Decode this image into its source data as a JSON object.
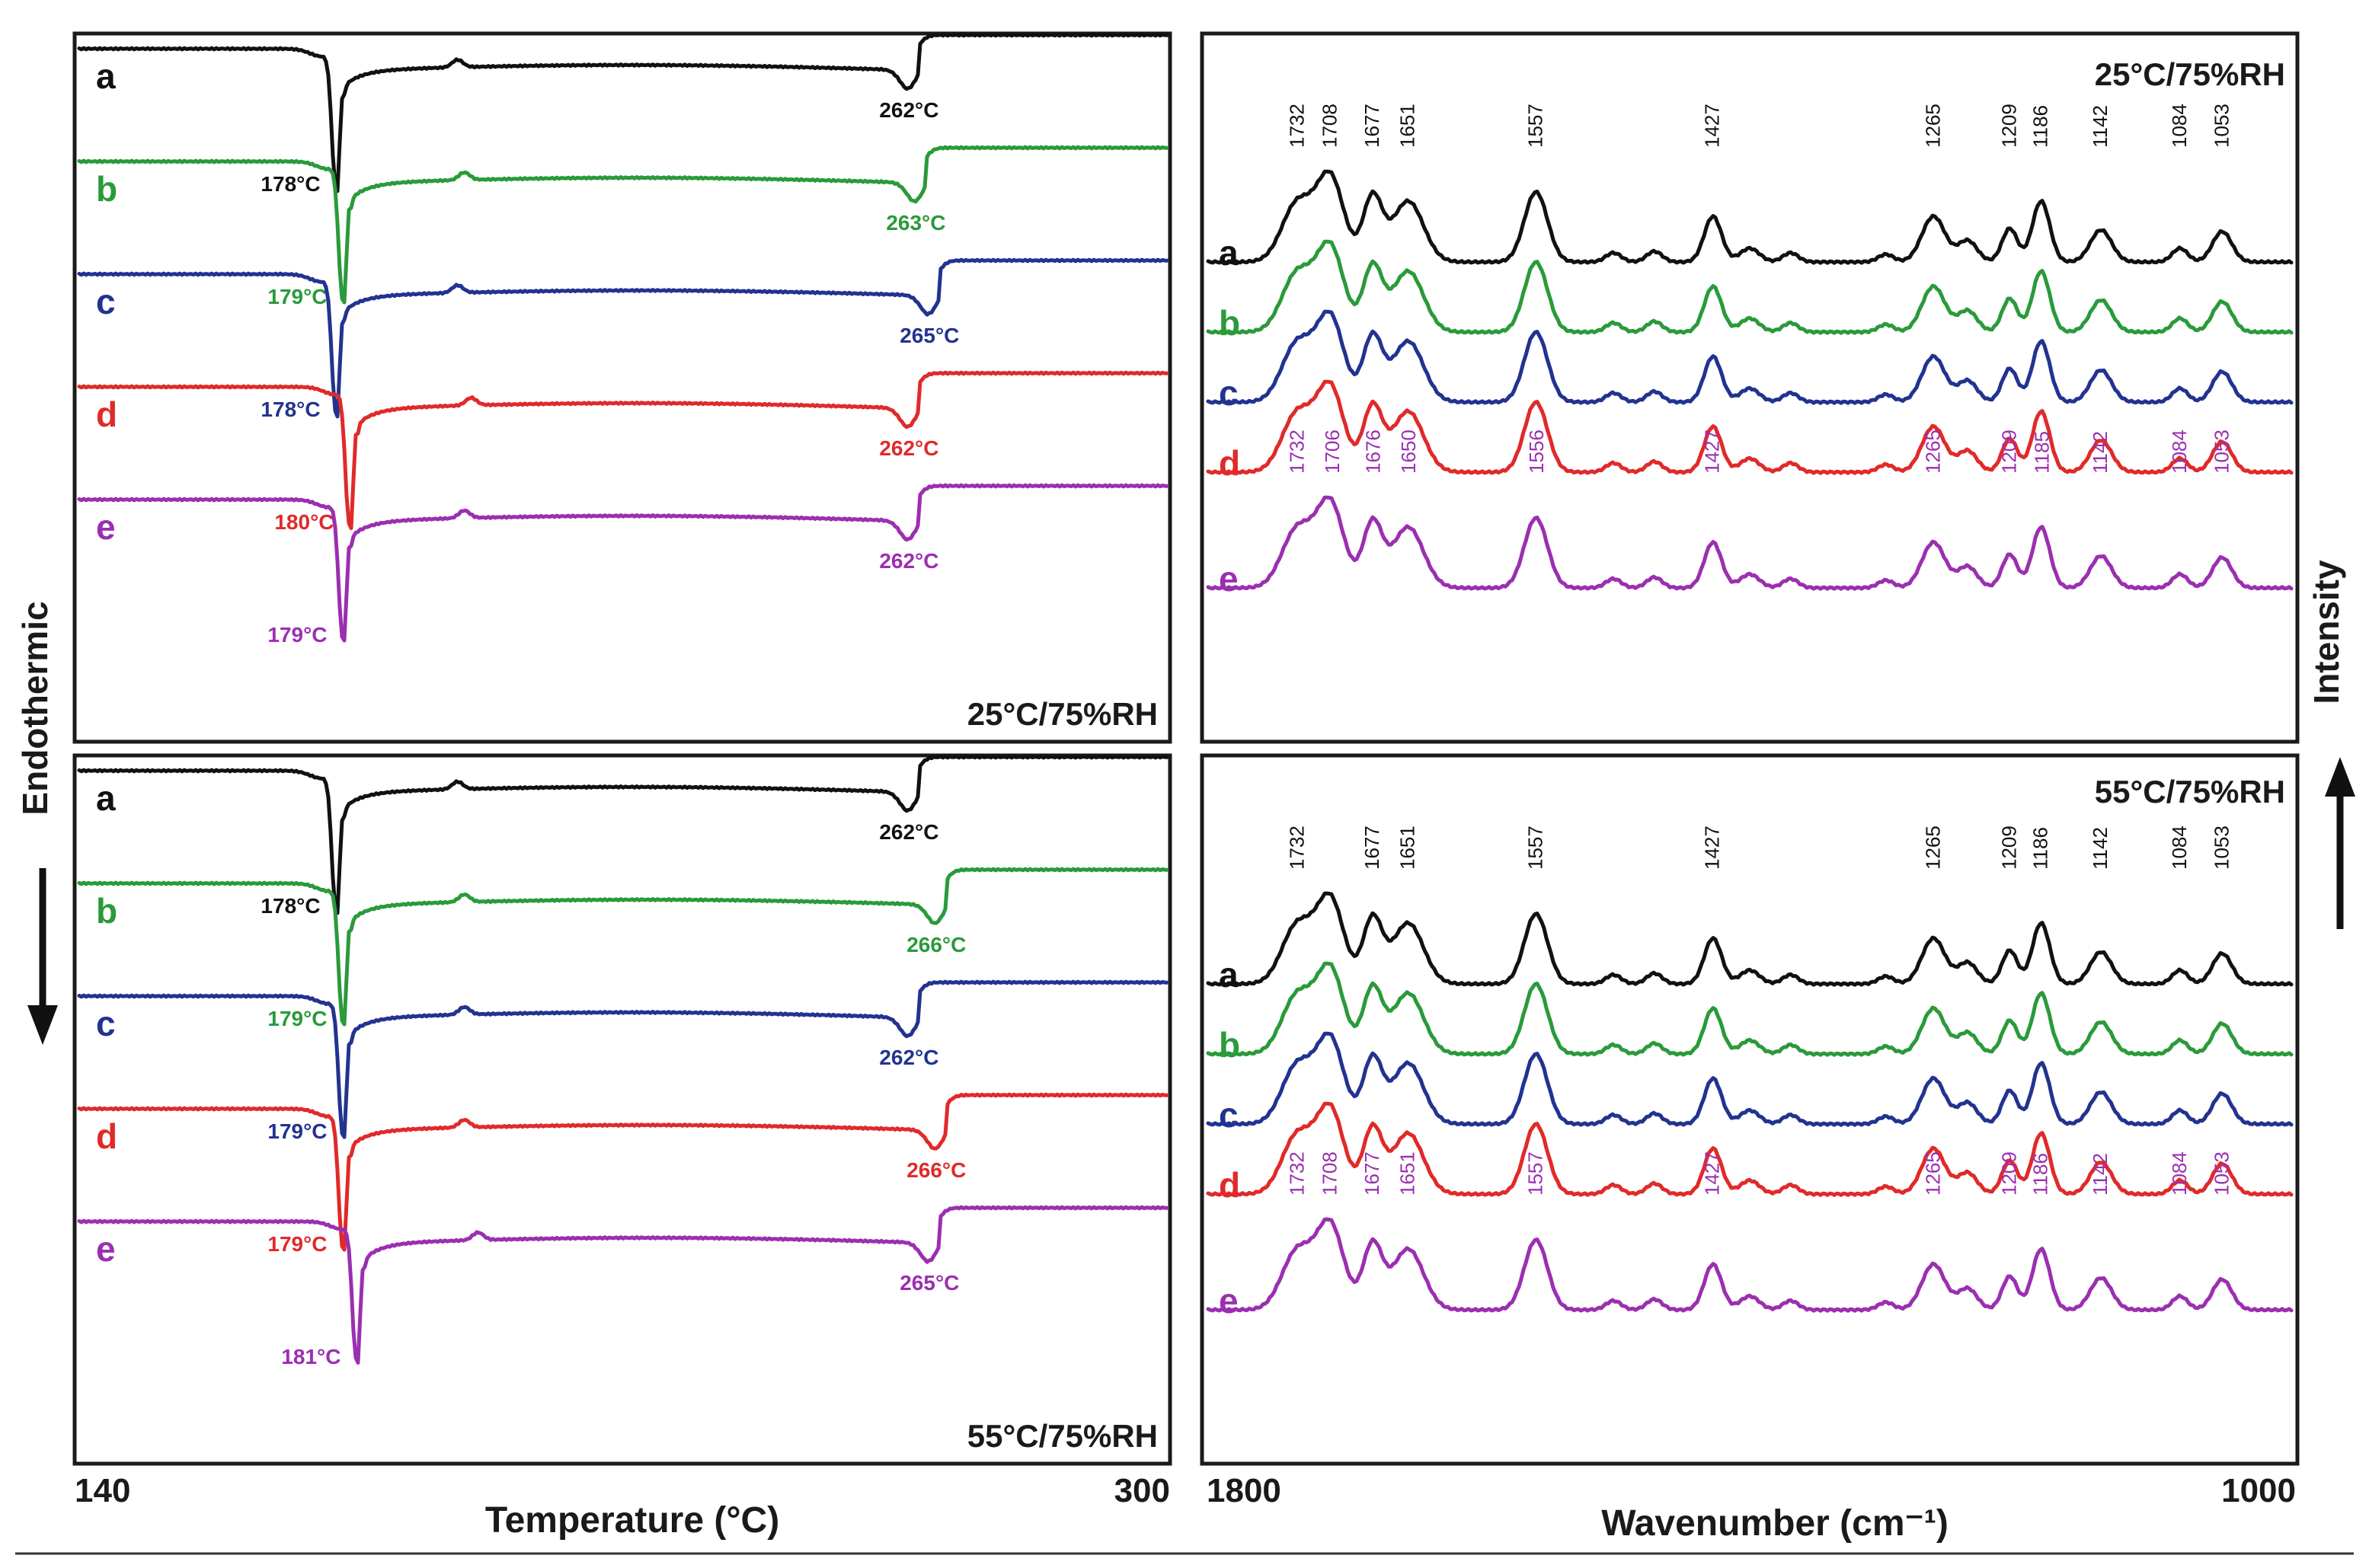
{
  "colors": {
    "a": "#111111",
    "b": "#2a9a3a",
    "c": "#22338f",
    "d": "#e02a2a",
    "e": "#9b2fb0"
  },
  "chart_data": [
    {
      "type": "line",
      "panel": "dsc-top",
      "title": "25°C/75%RH",
      "xlabel": "Temperature (°C)",
      "ylabel": "Endothermic",
      "xlim": [
        140,
        300
      ],
      "x_ticks": [
        "140",
        "300"
      ],
      "series": [
        {
          "name": "a",
          "peak1": 178,
          "peak1_label": "178°C",
          "peak2": 262,
          "peak2_label": "262°C"
        },
        {
          "name": "b",
          "peak1": 179,
          "peak1_label": "179°C",
          "peak2": 263,
          "peak2_label": "263°C"
        },
        {
          "name": "c",
          "peak1": 178,
          "peak1_label": "178°C",
          "peak2": 265,
          "peak2_label": "265°C"
        },
        {
          "name": "d",
          "peak1": 180,
          "peak1_label": "180°C",
          "peak2": 262,
          "peak2_label": "262°C"
        },
        {
          "name": "e",
          "peak1": 179,
          "peak1_label": "179°C",
          "peak2": 262,
          "peak2_label": "262°C"
        }
      ]
    },
    {
      "type": "line",
      "panel": "dsc-bottom",
      "title": "55°C/75%RH",
      "xlabel": "Temperature (°C)",
      "ylabel": "Endothermic",
      "xlim": [
        140,
        300
      ],
      "x_ticks": [
        "140",
        "300"
      ],
      "series": [
        {
          "name": "a",
          "peak1": 178,
          "peak1_label": "178°C",
          "peak2": 262,
          "peak2_label": "262°C"
        },
        {
          "name": "b",
          "peak1": 179,
          "peak1_label": "179°C",
          "peak2": 266,
          "peak2_label": "266°C"
        },
        {
          "name": "c",
          "peak1": 179,
          "peak1_label": "179°C",
          "peak2": 262,
          "peak2_label": "262°C"
        },
        {
          "name": "d",
          "peak1": 179,
          "peak1_label": "179°C",
          "peak2": 266,
          "peak2_label": "266°C"
        },
        {
          "name": "e",
          "peak1": 181,
          "peak1_label": "181°C",
          "peak2": 265,
          "peak2_label": "265°C"
        }
      ]
    },
    {
      "type": "line",
      "panel": "ftir-top",
      "title": "25°C/75%RH",
      "xlabel": "Wavenumber (cm⁻¹)",
      "ylabel": "Intensity",
      "xlim": [
        1800,
        1000
      ],
      "x_ticks": [
        "1800",
        "1000"
      ],
      "series_names": [
        "a",
        "b",
        "c",
        "d",
        "e"
      ],
      "peaks_a": [
        "1732",
        "1708",
        "1677",
        "1651",
        "1557",
        "1427",
        "1265",
        "1209",
        "1186",
        "1142",
        "1084",
        "1053"
      ],
      "peaks_e": [
        "1732",
        "1706",
        "1676",
        "1650",
        "1556",
        "1427",
        "1265",
        "1209",
        "1185",
        "1142",
        "1084",
        "1053"
      ]
    },
    {
      "type": "line",
      "panel": "ftir-bottom",
      "title": "55°C/75%RH",
      "xlabel": "Wavenumber (cm⁻¹)",
      "ylabel": "Intensity",
      "xlim": [
        1800,
        1000
      ],
      "x_ticks": [
        "1800",
        "1000"
      ],
      "series_names": [
        "a",
        "b",
        "c",
        "d",
        "e"
      ],
      "peaks_a": [
        "1732",
        "1677",
        "1651",
        "1557",
        "1427",
        "1265",
        "1209",
        "1186",
        "1142",
        "1084",
        "1053"
      ],
      "peaks_e": [
        "1732",
        "1708",
        "1677",
        "1651",
        "1557",
        "1427",
        "1265",
        "1209",
        "1186",
        "1142",
        "1084",
        "1053"
      ]
    }
  ],
  "labels": {
    "dsc_xlabel": "Temperature (°C)",
    "ftir_xlabel": "Wavenumber (cm⁻¹)",
    "left_side": "Endothermic",
    "right_side": "Intensity",
    "dsc_x_min": "140",
    "dsc_x_max": "300",
    "ftir_x_min": "1800",
    "ftir_x_max": "1000"
  }
}
